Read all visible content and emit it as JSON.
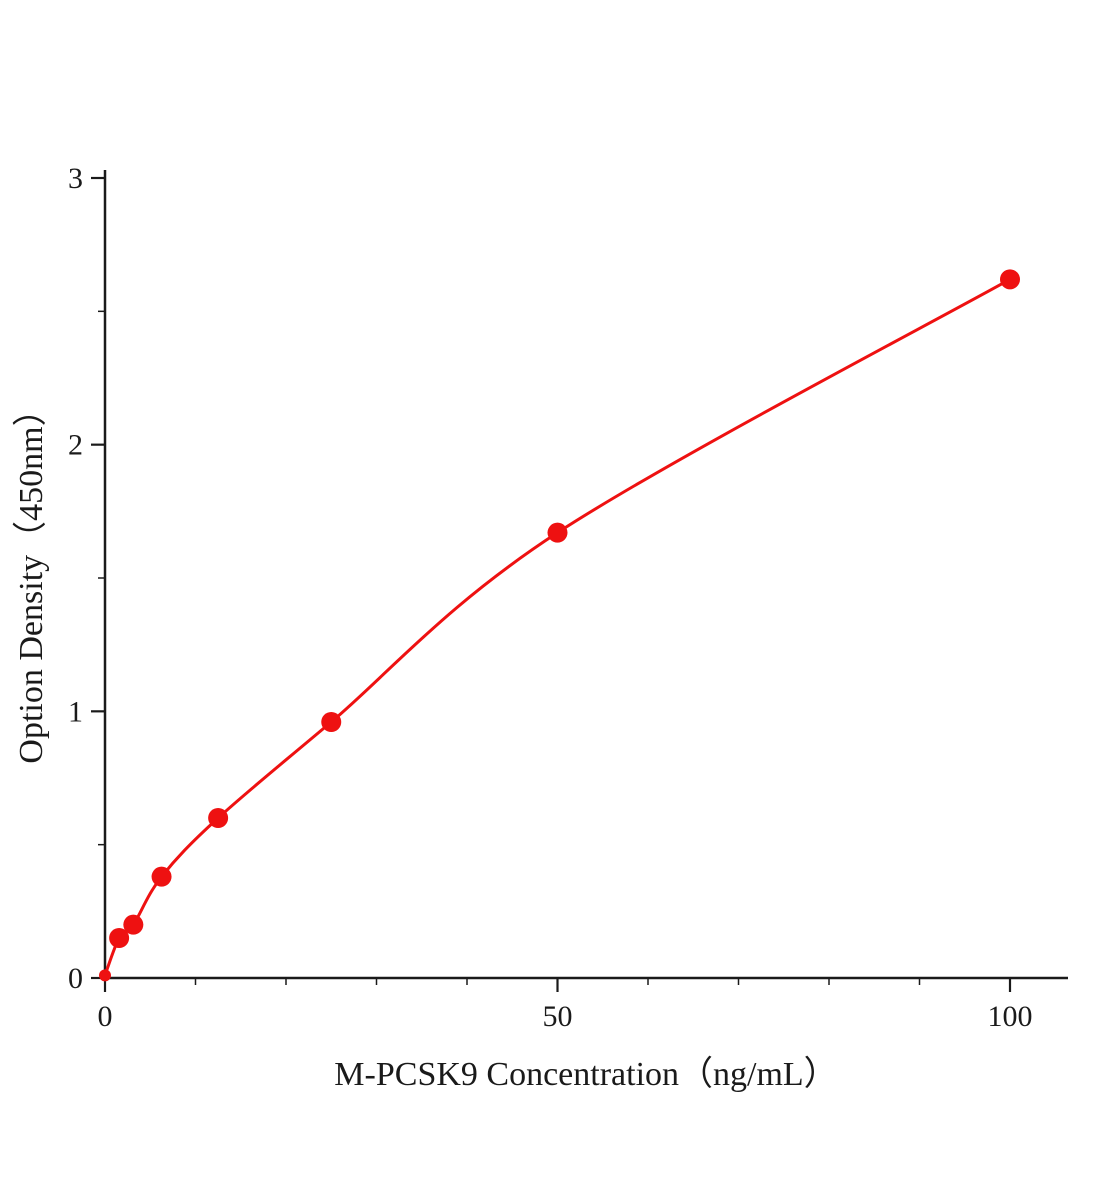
{
  "chart_data": {
    "type": "scatter",
    "subtype": "scatter-with-fitted-curve",
    "title": "",
    "xlabel": "M-PCSK9 Concentration（ng/mL）",
    "ylabel": "Option Density（450nm）",
    "x": [
      0,
      1.56,
      3.13,
      6.25,
      12.5,
      25,
      50,
      100
    ],
    "y": [
      0.01,
      0.15,
      0.2,
      0.38,
      0.6,
      0.96,
      1.67,
      2.62
    ],
    "xlim": [
      0,
      100
    ],
    "ylim": [
      0,
      3
    ],
    "x_ticks": [
      0,
      50,
      100
    ],
    "y_ticks": [
      0,
      1,
      2,
      3
    ],
    "x_minor_step": 10,
    "y_minor_step": 0.5,
    "grid": "off",
    "legend": "none",
    "series_color": "#ee1111",
    "axis_color": "#1a1a1a",
    "marker_radius": 10,
    "line_width": 3
  }
}
